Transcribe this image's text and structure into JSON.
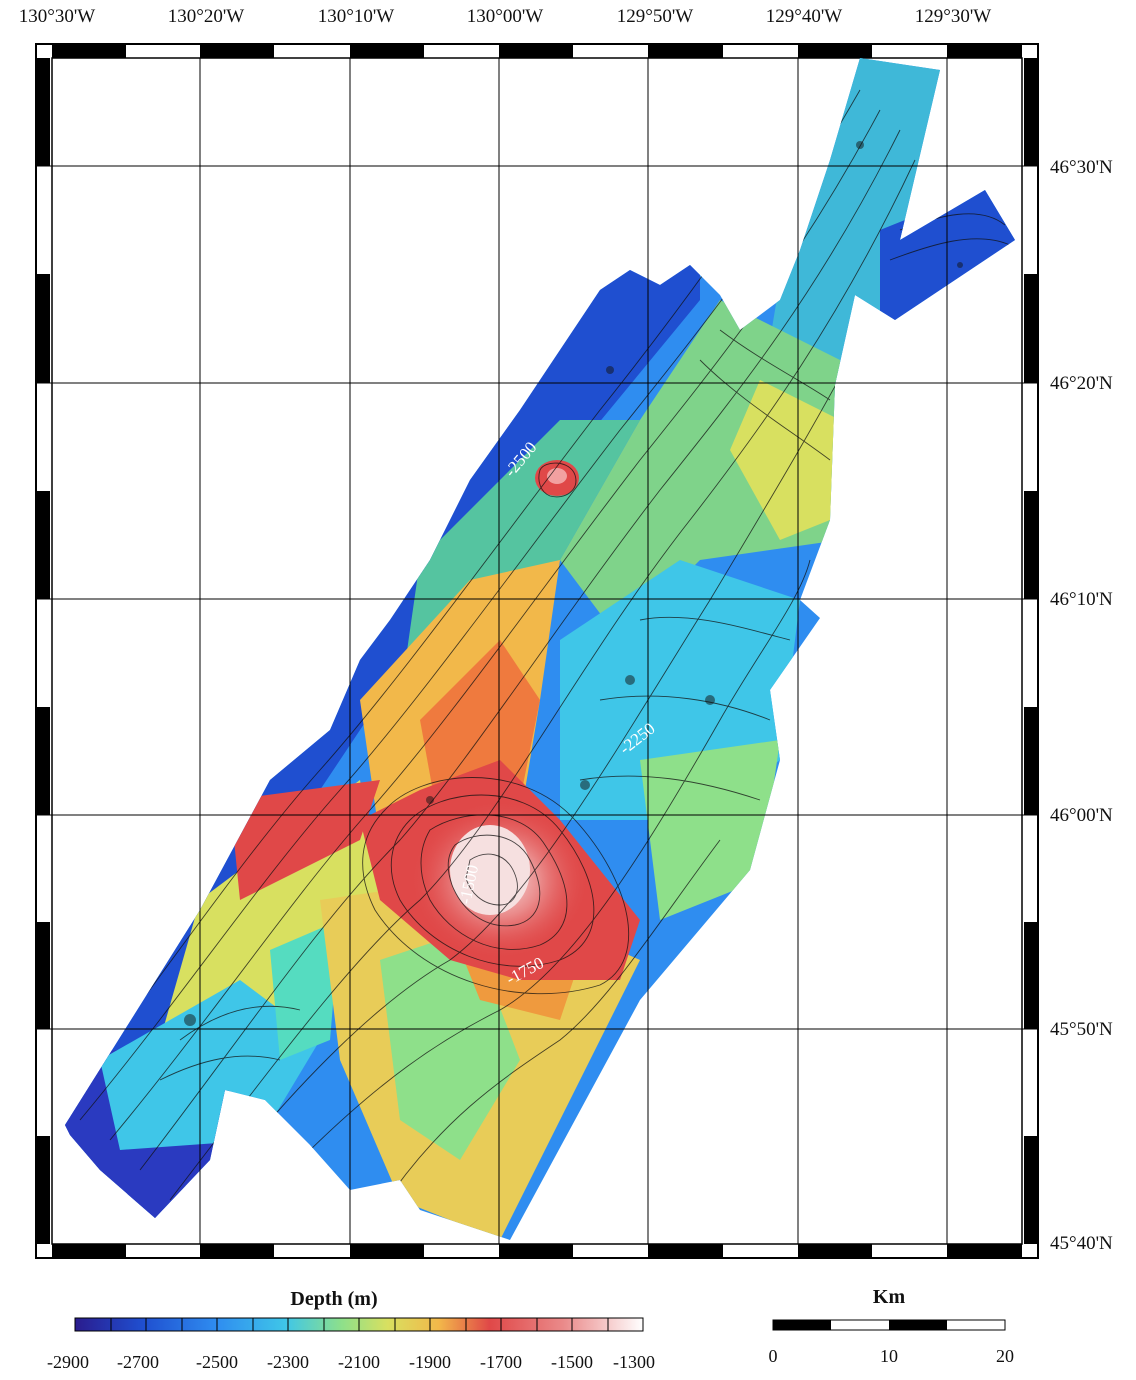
{
  "map": {
    "lon_labels": [
      "130°30'W",
      "130°20'W",
      "130°10'W",
      "130°00'W",
      "129°50'W",
      "129°40'W",
      "129°30'W"
    ],
    "lat_labels": [
      "46°30'N",
      "46°20'N",
      "46°10'N",
      "46°00'N",
      "45°50'N",
      "45°40'N"
    ],
    "contour_labels": [
      "-2500",
      "-2250",
      "-1500",
      "-1750"
    ]
  },
  "depth_legend": {
    "title": "Depth (m)",
    "ticks": [
      "-2900",
      "-2700",
      "-2500",
      "-2300",
      "-2100",
      "-1900",
      "-1700",
      "-1500",
      "-1300"
    ],
    "colors": [
      "#2a1c8e",
      "#1f4fd0",
      "#2f8df0",
      "#3fc6e8",
      "#55dcc0",
      "#8ee08a",
      "#d8e060",
      "#f2b84a",
      "#ef7a3e",
      "#e04848",
      "#ea8a8a",
      "#f6d8d8",
      "#ffffff"
    ]
  },
  "scale_bar": {
    "title": "Km",
    "ticks": [
      "0",
      "10",
      "20"
    ]
  }
}
